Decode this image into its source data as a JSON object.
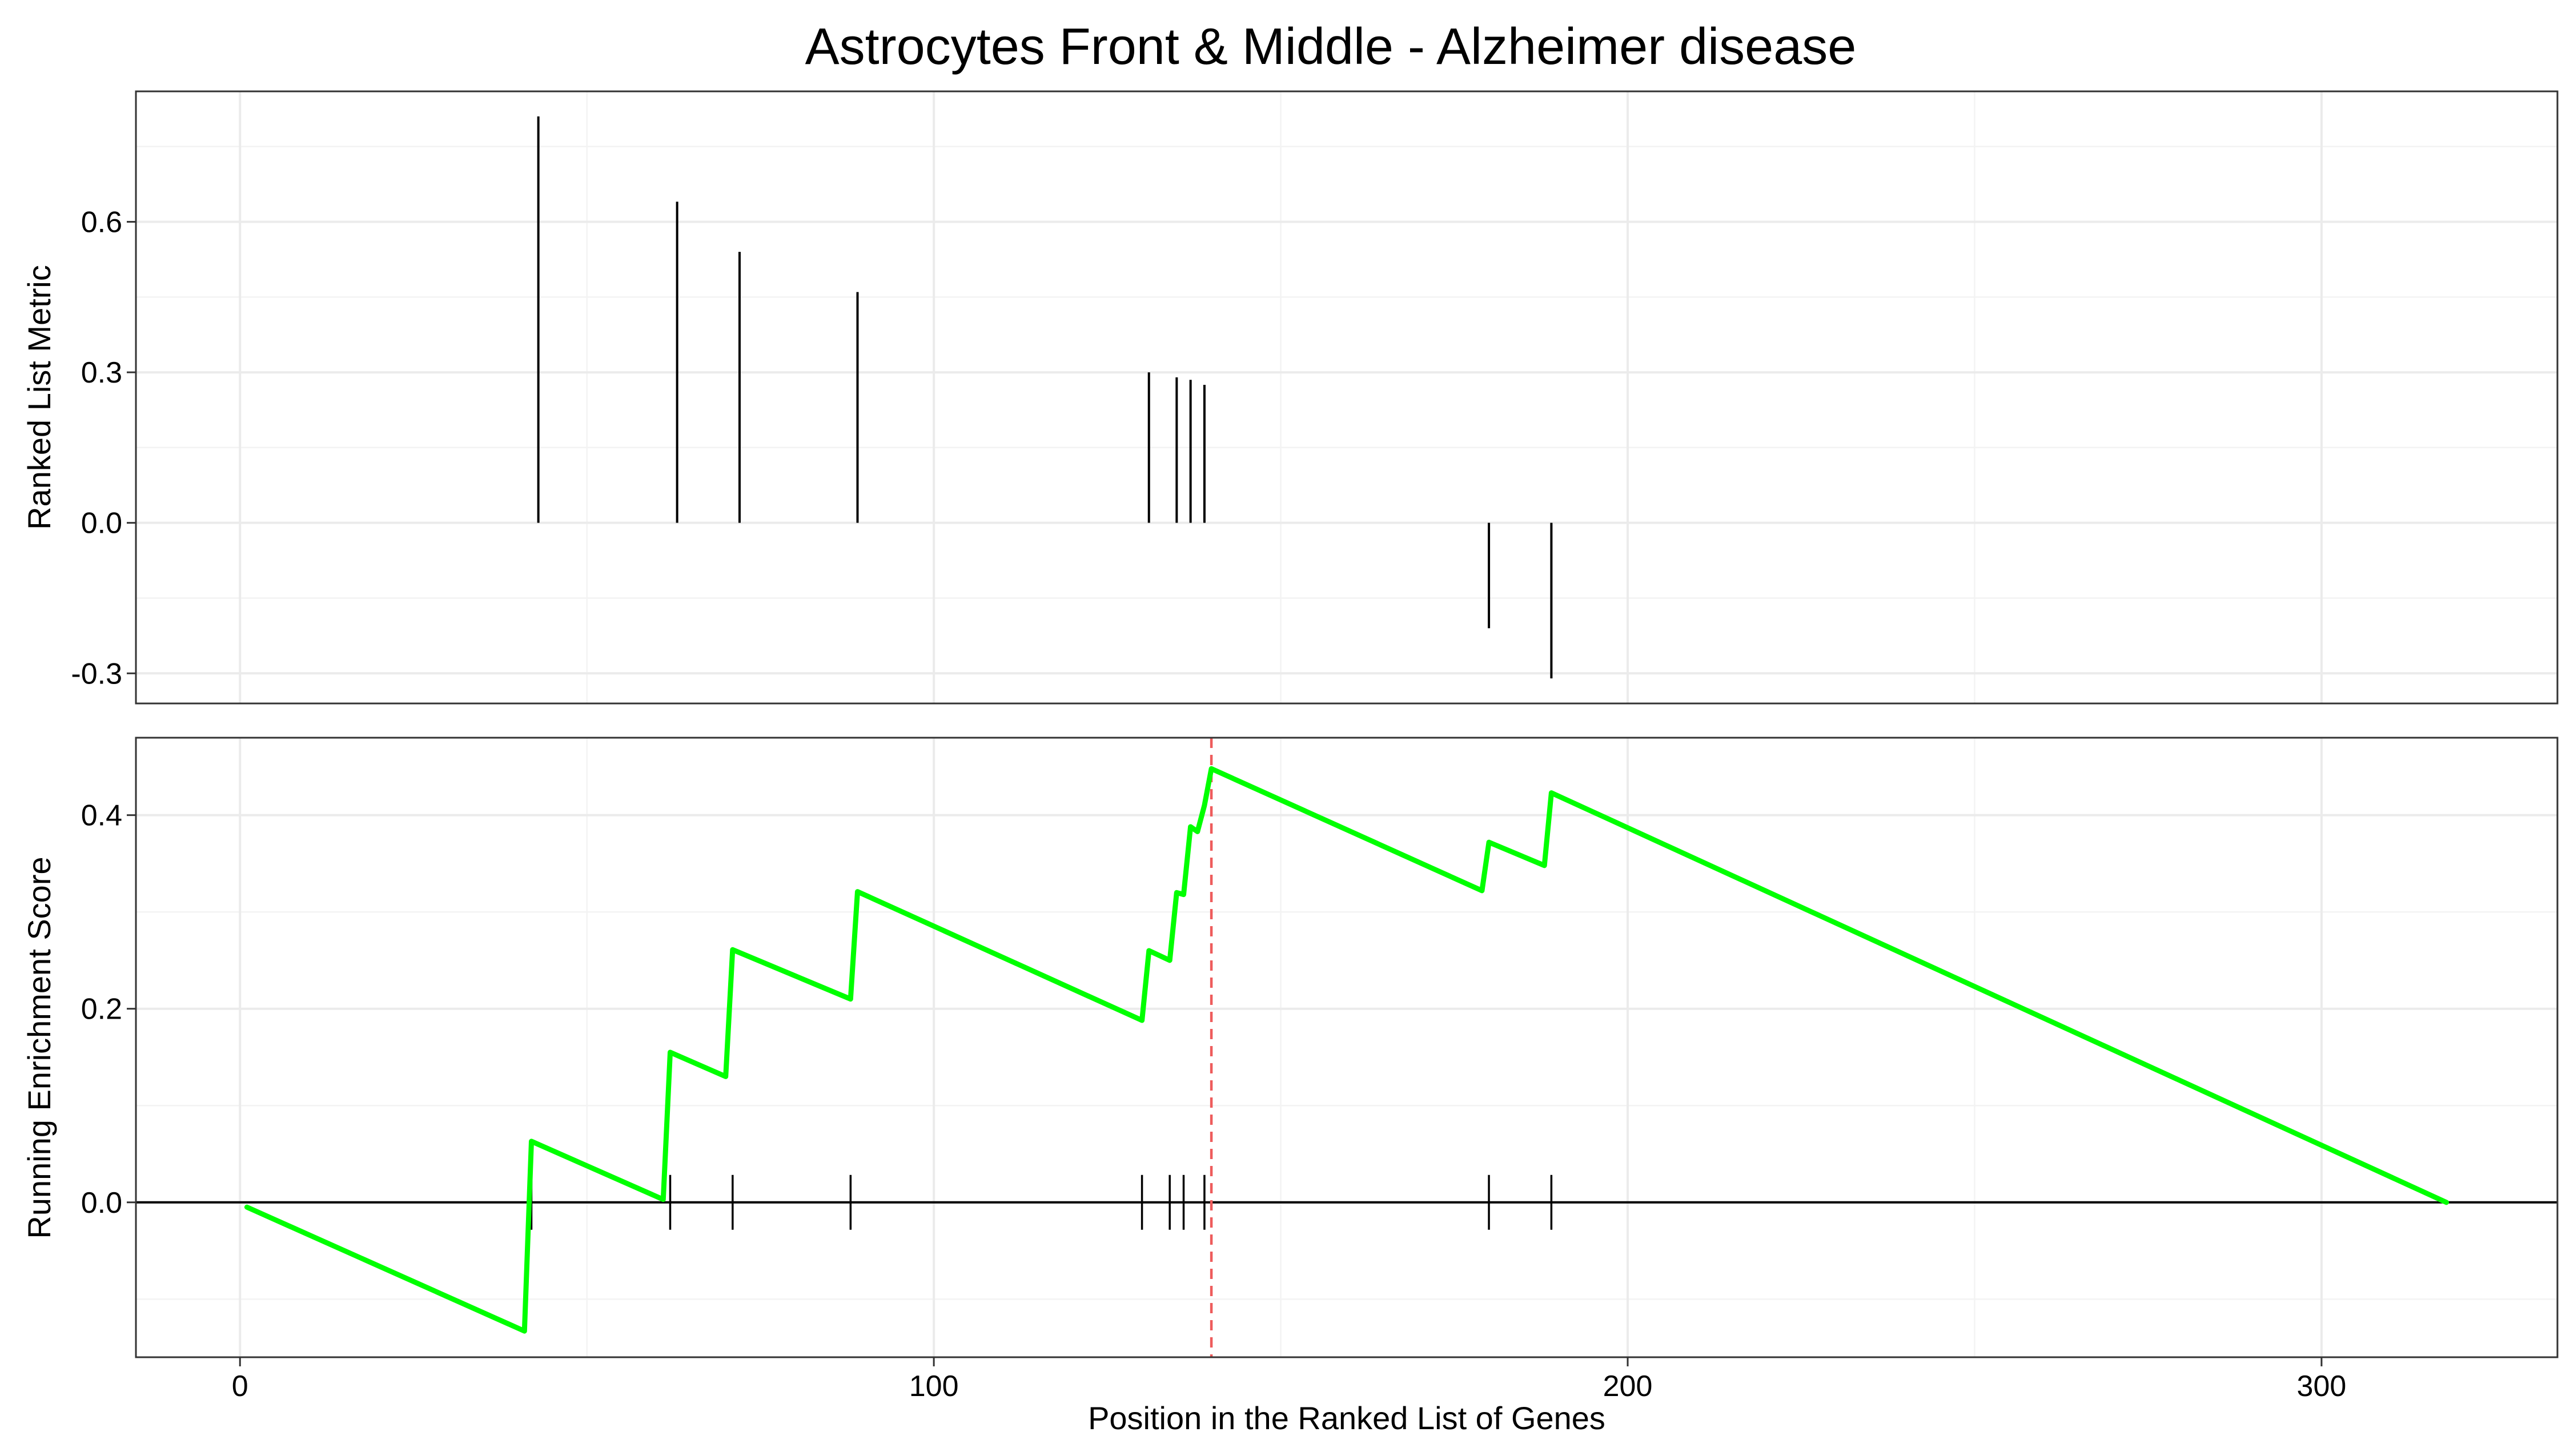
{
  "chart_data": [
    {
      "type": "bar",
      "panel": "ranked-list-metric",
      "title": "Astrocytes Front & Middle - Alzheimer disease",
      "ylabel": "Ranked List Metric",
      "xlabel": "",
      "xlim": [
        -15,
        334
      ],
      "ylim": [
        -0.36,
        0.86
      ],
      "yticks": [
        -0.3,
        0.0,
        0.3,
        0.6
      ],
      "ytick_labels": [
        "-0.3",
        "0.0",
        "0.3",
        "0.6"
      ],
      "grid": true,
      "x": [
        43,
        63,
        72,
        89,
        131,
        135,
        137,
        139,
        180,
        189
      ],
      "values": [
        0.81,
        0.64,
        0.54,
        0.46,
        0.3,
        0.29,
        0.285,
        0.275,
        -0.21,
        -0.31
      ],
      "bar_color": "#000000"
    },
    {
      "type": "line",
      "panel": "running-enrichment-score",
      "ylabel": "Running Enrichment Score",
      "xlabel": "Position in the Ranked List of Genes",
      "xlim": [
        -15,
        334
      ],
      "ylim": [
        -0.16,
        0.48
      ],
      "xticks": [
        0,
        100,
        200,
        300
      ],
      "xtick_labels": [
        "0",
        "100",
        "200",
        "300"
      ],
      "yticks": [
        0.0,
        0.2,
        0.4
      ],
      "ytick_labels": [
        "0.0",
        "0.2",
        "0.4"
      ],
      "grid": true,
      "line_color": "#00ff00",
      "series": [
        {
          "x": [
            1,
            41,
            42,
            61,
            62,
            70,
            71,
            88,
            89,
            130,
            131,
            134,
            135,
            136,
            137,
            138,
            139,
            140,
            179,
            180,
            188,
            189,
            318
          ],
          "values": [
            -0.005,
            -0.133,
            0.063,
            0.003,
            0.155,
            0.13,
            0.261,
            0.21,
            0.321,
            0.188,
            0.26,
            0.25,
            0.32,
            0.318,
            0.388,
            0.383,
            0.41,
            0.448,
            0.322,
            0.372,
            0.348,
            0.423,
            0.0
          ]
        }
      ],
      "hit_positions": [
        42,
        62,
        71,
        88,
        130,
        134,
        136,
        139,
        180,
        189
      ],
      "max_position": 140,
      "max_line_color": "#ee5c5c"
    }
  ]
}
